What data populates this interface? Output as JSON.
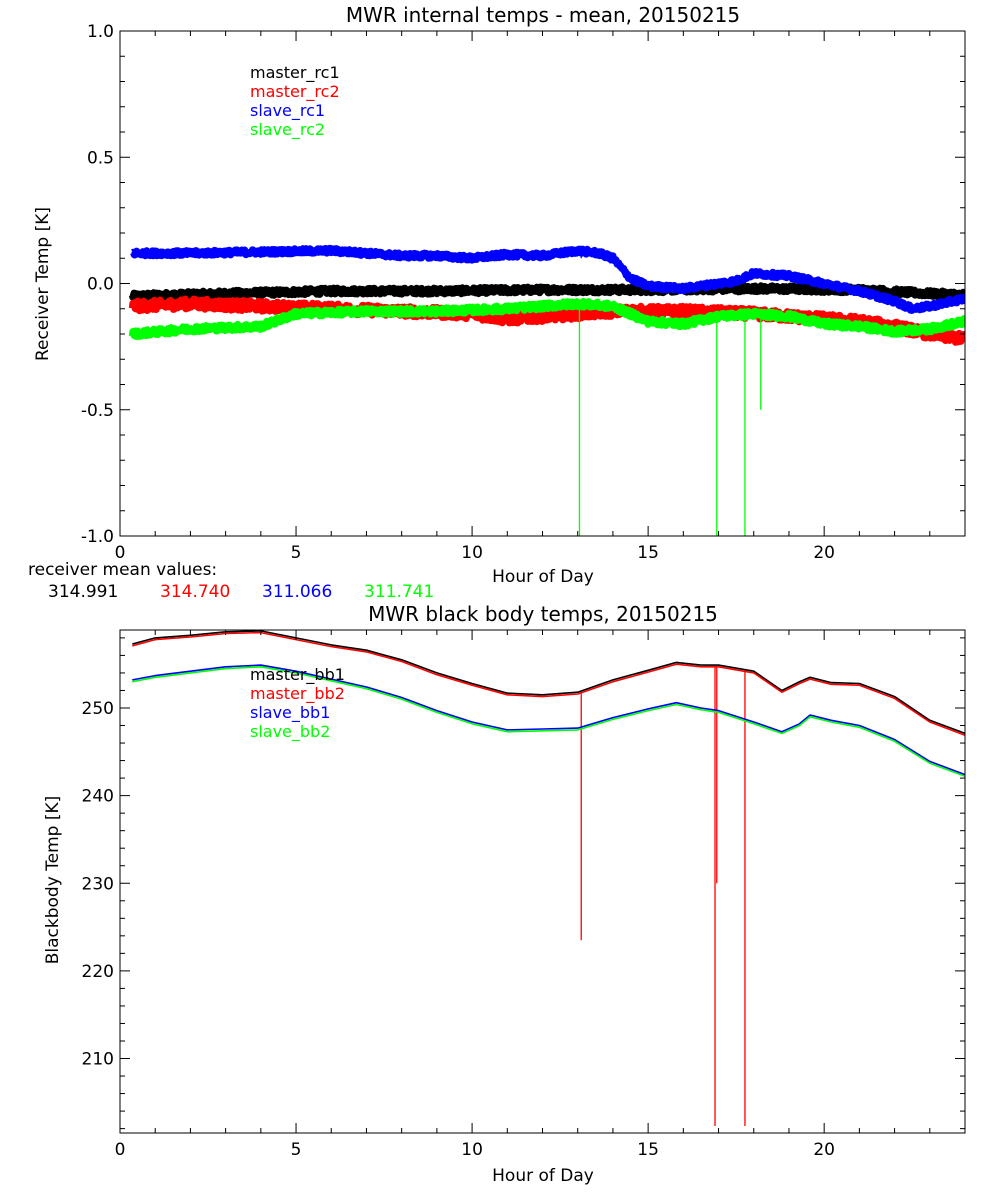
{
  "chart_data": [
    {
      "type": "line",
      "title": "MWR internal temps - mean, 20150215",
      "xlabel": "Hour of Day",
      "ylabel": "Receiver Temp [K]",
      "xlim": [
        0,
        24
      ],
      "ylim": [
        -1.0,
        1.0
      ],
      "xticks": [
        0,
        5,
        10,
        15,
        20
      ],
      "yticks": [
        -1.0,
        -0.5,
        0.0,
        0.5,
        1.0
      ],
      "ytick_labels": [
        "-1.0",
        "-0.5",
        "0.0",
        "0.5",
        "1.0"
      ],
      "grid": false,
      "legend_position": "top-left",
      "series": [
        {
          "name": "master_rc1",
          "color": "#000000",
          "noise": 0.012,
          "points": [
            [
              0.35,
              -0.05
            ],
            [
              3,
              -0.04
            ],
            [
              6,
              -0.03
            ],
            [
              9,
              -0.03
            ],
            [
              12,
              -0.025
            ],
            [
              15,
              -0.025
            ],
            [
              18,
              -0.02
            ],
            [
              21,
              -0.025
            ],
            [
              23,
              -0.04
            ],
            [
              24,
              -0.045
            ]
          ],
          "spikes": []
        },
        {
          "name": "master_rc2",
          "color": "#ff0000",
          "noise": 0.02,
          "points": [
            [
              0.35,
              -0.09
            ],
            [
              2,
              -0.08
            ],
            [
              4,
              -0.09
            ],
            [
              6,
              -0.1
            ],
            [
              8,
              -0.11
            ],
            [
              10,
              -0.12
            ],
            [
              11,
              -0.14
            ],
            [
              12,
              -0.13
            ],
            [
              13,
              -0.12
            ],
            [
              14,
              -0.11
            ],
            [
              16,
              -0.11
            ],
            [
              18,
              -0.12
            ],
            [
              20,
              -0.14
            ],
            [
              21,
              -0.15
            ],
            [
              22,
              -0.17
            ],
            [
              23,
              -0.2
            ],
            [
              24,
              -0.22
            ]
          ],
          "spikes": []
        },
        {
          "name": "slave_rc1",
          "color": "#0000ff",
          "noise": 0.01,
          "points": [
            [
              0.35,
              0.12
            ],
            [
              2,
              0.12
            ],
            [
              4,
              0.125
            ],
            [
              6,
              0.13
            ],
            [
              8,
              0.11
            ],
            [
              9,
              0.11
            ],
            [
              10,
              0.1
            ],
            [
              11,
              0.115
            ],
            [
              12,
              0.11
            ],
            [
              13,
              0.13
            ],
            [
              13.6,
              0.12
            ],
            [
              14,
              0.1
            ],
            [
              14.5,
              0.02
            ],
            [
              15,
              -0.01
            ],
            [
              16,
              -0.02
            ],
            [
              17,
              0.0
            ],
            [
              17.5,
              0.01
            ],
            [
              18,
              0.04
            ],
            [
              19,
              0.03
            ],
            [
              20,
              0.0
            ],
            [
              21,
              -0.03
            ],
            [
              22,
              -0.07
            ],
            [
              22.5,
              -0.1
            ],
            [
              23,
              -0.09
            ],
            [
              24,
              -0.06
            ]
          ],
          "spikes": [
            [
              13.1,
              0.1
            ],
            [
              17.75,
              0.0
            ],
            [
              16.85,
              -0.02
            ]
          ]
        },
        {
          "name": "slave_rc2",
          "color": "#00ff00",
          "noise": 0.012,
          "points": [
            [
              0.35,
              -0.2
            ],
            [
              2,
              -0.18
            ],
            [
              4,
              -0.17
            ],
            [
              5,
              -0.12
            ],
            [
              7,
              -0.11
            ],
            [
              9,
              -0.11
            ],
            [
              11,
              -0.1
            ],
            [
              12,
              -0.09
            ],
            [
              13,
              -0.08
            ],
            [
              14,
              -0.09
            ],
            [
              15,
              -0.15
            ],
            [
              16,
              -0.16
            ],
            [
              17,
              -0.13
            ],
            [
              18,
              -0.12
            ],
            [
              19,
              -0.13
            ],
            [
              20,
              -0.16
            ],
            [
              21,
              -0.17
            ],
            [
              22,
              -0.19
            ],
            [
              23,
              -0.18
            ],
            [
              24,
              -0.15
            ]
          ],
          "spikes": [
            [
              13.05,
              -1.0
            ],
            [
              16.95,
              -1.0
            ],
            [
              17.75,
              -1.0
            ],
            [
              18.2,
              -0.5
            ]
          ]
        }
      ],
      "annotation": {
        "label": "receiver mean values:",
        "values": [
          "314.991",
          "314.740",
          "311.066",
          "311.741"
        ],
        "colors": [
          "#000000",
          "#ff0000",
          "#0000ff",
          "#00ff00"
        ]
      }
    },
    {
      "type": "line",
      "title": "MWR black body temps, 20150215",
      "xlabel": "Hour of Day",
      "ylabel": "Blackbody Temp [K]",
      "xlim": [
        0,
        24
      ],
      "ylim": [
        201.5,
        258.9
      ],
      "xticks": [
        0,
        5,
        10,
        15,
        20
      ],
      "yticks": [
        210,
        220,
        230,
        240,
        250
      ],
      "ytick_labels": [
        "210",
        "220",
        "230",
        "240",
        "250"
      ],
      "grid": false,
      "legend_position": "top-left",
      "series": [
        {
          "name": "master_bb1",
          "color": "#000000",
          "points": [
            [
              0.35,
              257.3
            ],
            [
              1,
              258.0
            ],
            [
              2,
              258.3
            ],
            [
              3,
              258.7
            ],
            [
              4,
              258.8
            ],
            [
              5,
              258.0
            ],
            [
              6,
              257.2
            ],
            [
              7,
              256.6
            ],
            [
              8,
              255.5
            ],
            [
              9,
              254.0
            ],
            [
              10,
              252.8
            ],
            [
              11,
              251.7
            ],
            [
              12,
              251.5
            ],
            [
              13,
              251.8
            ],
            [
              14,
              253.2
            ],
            [
              15,
              254.3
            ],
            [
              15.8,
              255.2
            ],
            [
              16.5,
              254.9
            ],
            [
              17,
              254.9
            ],
            [
              18,
              254.2
            ],
            [
              18.8,
              252.0
            ],
            [
              19.3,
              253.0
            ],
            [
              19.6,
              253.5
            ],
            [
              20.2,
              252.9
            ],
            [
              21,
              252.8
            ],
            [
              22,
              251.3
            ],
            [
              23,
              248.6
            ],
            [
              24,
              247.1
            ]
          ],
          "spikes": []
        },
        {
          "name": "master_bb2",
          "color": "#ff0000",
          "points": [
            [
              0.35,
              257.1
            ],
            [
              1,
              257.8
            ],
            [
              2,
              258.1
            ],
            [
              3,
              258.5
            ],
            [
              4,
              258.6
            ],
            [
              5,
              257.8
            ],
            [
              6,
              257.0
            ],
            [
              7,
              256.4
            ],
            [
              8,
              255.3
            ],
            [
              9,
              253.8
            ],
            [
              10,
              252.6
            ],
            [
              11,
              251.5
            ],
            [
              12,
              251.3
            ],
            [
              13,
              251.6
            ],
            [
              14,
              253.0
            ],
            [
              15,
              254.1
            ],
            [
              15.8,
              255.0
            ],
            [
              16.5,
              254.7
            ],
            [
              17,
              254.7
            ],
            [
              18,
              254.0
            ],
            [
              18.8,
              251.8
            ],
            [
              19.3,
              252.8
            ],
            [
              19.6,
              253.3
            ],
            [
              20.2,
              252.7
            ],
            [
              21,
              252.6
            ],
            [
              22,
              251.1
            ],
            [
              23,
              248.4
            ],
            [
              24,
              246.9
            ]
          ],
          "spikes": [
            [
              13.1,
              223.5
            ],
            [
              16.9,
              202.3
            ],
            [
              16.95,
              230.0
            ],
            [
              17.75,
              202.3
            ]
          ]
        },
        {
          "name": "slave_bb1",
          "color": "#0000ff",
          "points": [
            [
              0.35,
              253.2
            ],
            [
              1,
              253.7
            ],
            [
              2,
              254.2
            ],
            [
              3,
              254.7
            ],
            [
              4,
              254.9
            ],
            [
              5,
              254.2
            ],
            [
              6,
              253.3
            ],
            [
              7,
              252.4
            ],
            [
              8,
              251.2
            ],
            [
              9,
              249.7
            ],
            [
              10,
              248.4
            ],
            [
              11,
              247.5
            ],
            [
              12,
              247.6
            ],
            [
              13,
              247.7
            ],
            [
              14,
              248.9
            ],
            [
              15,
              249.9
            ],
            [
              15.8,
              250.6
            ],
            [
              16.5,
              250.0
            ],
            [
              17,
              249.7
            ],
            [
              18,
              248.4
            ],
            [
              18.8,
              247.3
            ],
            [
              19.3,
              248.2
            ],
            [
              19.6,
              249.2
            ],
            [
              20.2,
              248.6
            ],
            [
              21,
              248.0
            ],
            [
              22,
              246.4
            ],
            [
              23,
              243.9
            ],
            [
              24,
              242.4
            ]
          ],
          "spikes": []
        },
        {
          "name": "slave_bb2",
          "color": "#00ff00",
          "points": [
            [
              0.35,
              253.0
            ],
            [
              1,
              253.5
            ],
            [
              2,
              254.0
            ],
            [
              3,
              254.5
            ],
            [
              4,
              254.7
            ],
            [
              5,
              254.0
            ],
            [
              6,
              253.1
            ],
            [
              7,
              252.2
            ],
            [
              8,
              251.0
            ],
            [
              9,
              249.5
            ],
            [
              10,
              248.2
            ],
            [
              11,
              247.3
            ],
            [
              12,
              247.4
            ],
            [
              13,
              247.5
            ],
            [
              14,
              248.7
            ],
            [
              15,
              249.7
            ],
            [
              15.8,
              250.4
            ],
            [
              16.5,
              249.8
            ],
            [
              17,
              249.5
            ],
            [
              18,
              248.2
            ],
            [
              18.8,
              247.1
            ],
            [
              19.3,
              248.0
            ],
            [
              19.6,
              249.0
            ],
            [
              20.2,
              248.4
            ],
            [
              21,
              247.8
            ],
            [
              22,
              246.2
            ],
            [
              23,
              243.7
            ],
            [
              24,
              242.2
            ]
          ],
          "spikes": []
        }
      ]
    }
  ]
}
